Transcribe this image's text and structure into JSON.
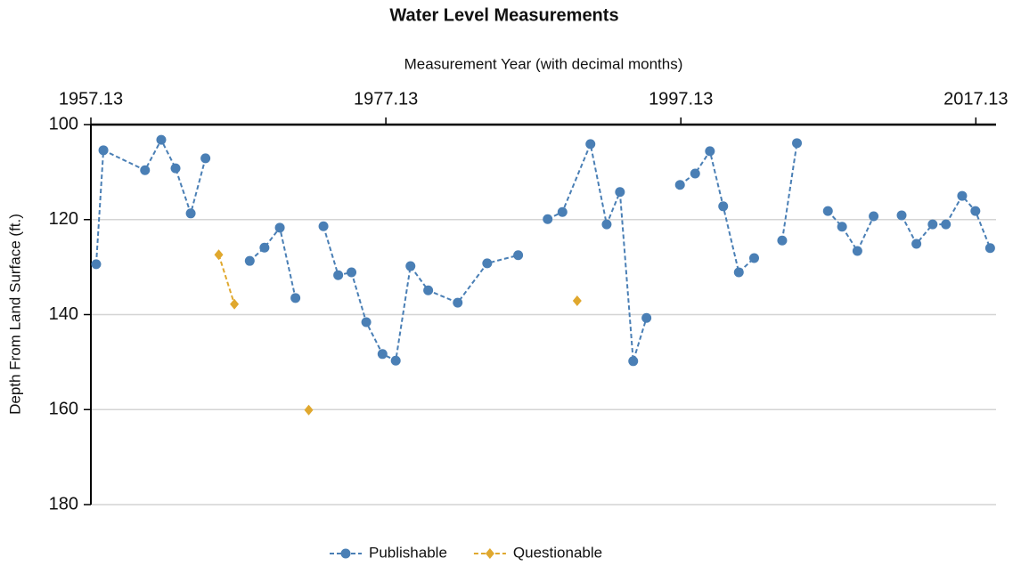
{
  "chart_data": {
    "type": "line",
    "title": "Water Level Measurements",
    "xlabel": "Measurement Year (with decimal months)",
    "ylabel": "Depth From Land Surface (ft.)",
    "xlim": [
      1957.13,
      2018.5
    ],
    "xticks": [
      1957.13,
      1977.13,
      1997.13,
      2017.13
    ],
    "ylim": [
      100,
      180
    ],
    "yticks": [
      100,
      120,
      140,
      160,
      180
    ],
    "y_inverted": true,
    "grid": true,
    "legend": "bottom",
    "series": [
      {
        "name": "Publishable",
        "color": "#4a7fb5",
        "marker": "circle",
        "x": [
          1957.49,
          1957.98,
          1960.8,
          1961.9,
          1962.87,
          1963.9,
          1964.9,
          null,
          1967.9,
          1968.9,
          1969.94,
          1971.0,
          null,
          1972.9,
          1973.9,
          1974.8,
          1975.8,
          1976.9,
          1977.8,
          1978.8,
          1980.0,
          1982.0,
          1984.0,
          1986.1,
          null,
          1988.1,
          1989.1,
          1991.0,
          1992.1,
          1993.0,
          1993.9,
          1994.8,
          null,
          1997.07,
          1998.1,
          1999.1,
          2000.0,
          2001.06,
          2002.1,
          null,
          2004.0,
          2005.0,
          null,
          2007.1,
          2008.06,
          2009.1,
          2010.2,
          null,
          2012.1,
          2013.1,
          2014.2,
          2015.1,
          2016.2,
          2017.1,
          2018.1
        ],
        "values": [
          129.4,
          105.4,
          109.6,
          103.2,
          109.2,
          118.7,
          107.1,
          null,
          128.7,
          125.9,
          121.7,
          136.5,
          null,
          121.4,
          131.7,
          131.1,
          141.6,
          148.3,
          149.7,
          129.8,
          134.9,
          137.5,
          129.2,
          127.5,
          null,
          119.9,
          118.4,
          104.1,
          121.0,
          114.2,
          149.8,
          140.7,
          null,
          112.7,
          110.3,
          105.6,
          117.2,
          131.1,
          128.1,
          null,
          124.4,
          103.9,
          null,
          118.2,
          121.5,
          126.6,
          119.3,
          null,
          119.1,
          125.1,
          121.0,
          121.0,
          115.0,
          118.2,
          126.0
        ]
      },
      {
        "name": "Questionable",
        "color": "#e0a82e",
        "marker": "diamond",
        "x": [
          1965.8,
          1966.86,
          null,
          1971.9,
          null,
          1990.1
        ],
        "values": [
          127.4,
          137.8,
          null,
          160.1,
          null,
          137.1
        ]
      }
    ]
  }
}
